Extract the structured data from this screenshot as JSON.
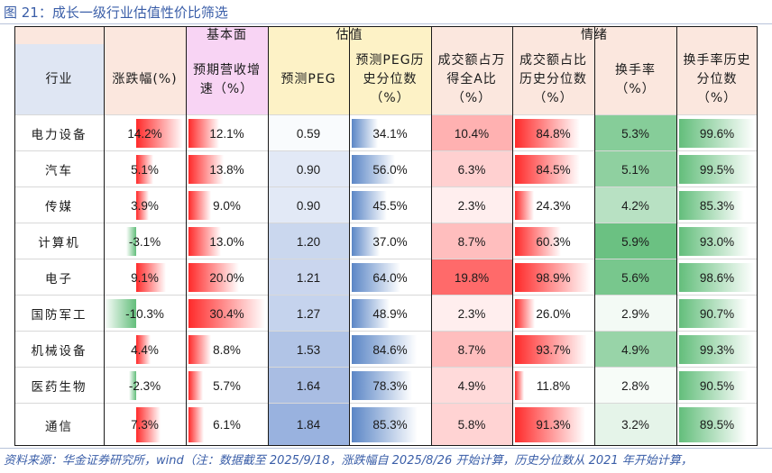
{
  "title": "图 21：成长一级行业估值性价比筛选",
  "groups": {
    "fundamental": "基本面",
    "valuation": "估值",
    "sentiment": "情绪"
  },
  "columns": {
    "industry": "行业",
    "change": "涨跌幅(%)",
    "growth": "预期营收增速（%）",
    "peg": "预测PEG",
    "peg_pct": "预测PEG历史分位数（%）",
    "turnover_share": "成交额占万得全A比（%）",
    "turnover_share_pct": "成交额占比历史分位数（%）",
    "turnover_rate": "换手率（%）",
    "turnover_rate_pct": "换手率历史分位数（%）"
  },
  "rows": [
    {
      "industry": "电力设备",
      "change": "14.2%",
      "growth": "12.1%",
      "peg": "0.59",
      "peg_pct": "34.1%",
      "turnover_share": "10.4%",
      "turnover_share_pct": "84.8%",
      "turnover_rate": "5.3%",
      "turnover_rate_pct": "99.6%"
    },
    {
      "industry": "汽车",
      "change": "5.1%",
      "growth": "13.8%",
      "peg": "0.90",
      "peg_pct": "56.0%",
      "turnover_share": "6.3%",
      "turnover_share_pct": "84.5%",
      "turnover_rate": "5.1%",
      "turnover_rate_pct": "99.5%"
    },
    {
      "industry": "传媒",
      "change": "3.9%",
      "growth": "9.0%",
      "peg": "0.90",
      "peg_pct": "45.5%",
      "turnover_share": "2.3%",
      "turnover_share_pct": "24.3%",
      "turnover_rate": "4.2%",
      "turnover_rate_pct": "85.3%"
    },
    {
      "industry": "计算机",
      "change": "-3.1%",
      "growth": "13.0%",
      "peg": "1.20",
      "peg_pct": "37.0%",
      "turnover_share": "8.7%",
      "turnover_share_pct": "60.3%",
      "turnover_rate": "5.9%",
      "turnover_rate_pct": "93.0%"
    },
    {
      "industry": "电子",
      "change": "9.1%",
      "growth": "20.0%",
      "peg": "1.21",
      "peg_pct": "64.0%",
      "turnover_share": "19.8%",
      "turnover_share_pct": "98.9%",
      "turnover_rate": "5.6%",
      "turnover_rate_pct": "98.6%"
    },
    {
      "industry": "国防军工",
      "change": "-10.3%",
      "growth": "30.4%",
      "peg": "1.27",
      "peg_pct": "48.9%",
      "turnover_share": "2.3%",
      "turnover_share_pct": "26.0%",
      "turnover_rate": "2.9%",
      "turnover_rate_pct": "90.7%"
    },
    {
      "industry": "机械设备",
      "change": "4.4%",
      "growth": "8.8%",
      "peg": "1.53",
      "peg_pct": "84.6%",
      "turnover_share": "8.7%",
      "turnover_share_pct": "93.7%",
      "turnover_rate": "4.9%",
      "turnover_rate_pct": "99.3%"
    },
    {
      "industry": "医药生物",
      "change": "-2.3%",
      "growth": "5.7%",
      "peg": "1.64",
      "peg_pct": "78.3%",
      "turnover_share": "4.9%",
      "turnover_share_pct": "11.8%",
      "turnover_rate": "2.8%",
      "turnover_rate_pct": "90.5%"
    },
    {
      "industry": "通信",
      "change": "7.3%",
      "growth": "6.1%",
      "peg": "1.84",
      "peg_pct": "85.3%",
      "turnover_share": "5.8%",
      "turnover_share_pct": "91.3%",
      "turnover_rate": "3.2%",
      "turnover_rate_pct": "89.5%"
    }
  ],
  "colors": {
    "header_blue": "#dfe6f3",
    "header_pink": "#f8d4f4",
    "header_yellow": "#fdf2c6",
    "header_peach": "#fbe7de",
    "bar_red": "#ff2a2a",
    "bar_green": "#63be7b",
    "bar_blue": "#5b86c6",
    "scale_red": "#ff5050",
    "scale_blue": "#8ea9db",
    "scale_green": "#63be7b"
  },
  "footer": "资料来源：华金证券研究所，wind（注：数据截至 2025/9/18，涨跌幅自 2025/8/26 开始计算，历史分位数从 2021 年开始计算，"
}
